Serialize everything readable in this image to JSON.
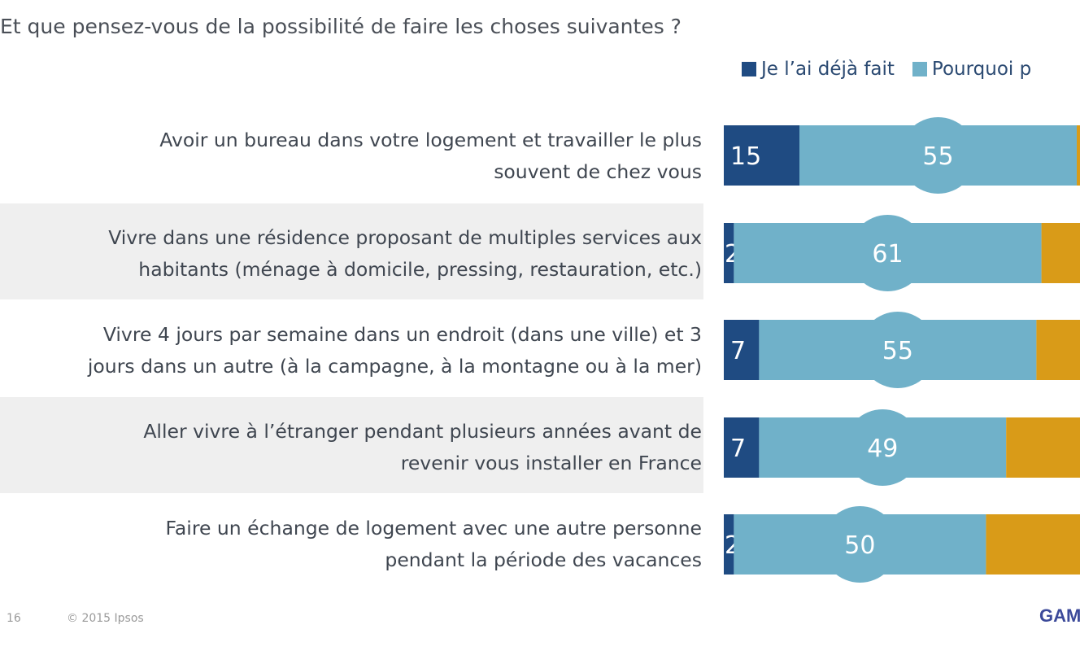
{
  "subtitle": "Et que pensez-vous de la possibilité de faire les choses suivantes ?",
  "chart_data": {
    "type": "bar",
    "orientation": "horizontal",
    "stacked": true,
    "categories": [
      "Avoir un bureau dans votre logement et travailler le plus souvent de chez vous",
      "Vivre dans une résidence proposant de multiples services aux habitants (ménage à domicile, pressing, restauration, etc.)",
      "Vivre 4 jours par semaine dans un endroit (dans une ville) et 3 jours dans un autre (à la campagne, à la montagne ou à la mer)",
      "Aller vivre à l’étranger pendant plusieurs années avant de revenir vous installer en France",
      "Faire un échange de logement avec une autre personne pendant la période des vacances"
    ],
    "category_lines": [
      [
        "Avoir un bureau dans votre logement et travailler le plus",
        "souvent de chez vous"
      ],
      [
        "Vivre dans une résidence proposant de multiples services aux",
        "habitants (ménage à domicile, pressing, restauration, etc.)"
      ],
      [
        "Vivre 4 jours par semaine dans un endroit (dans une ville) et 3",
        "jours dans un autre (à la campagne, à la montagne ou à la mer)"
      ],
      [
        "Aller vivre à l’étranger pendant plusieurs années avant de",
        "revenir vous installer en France"
      ],
      [
        "Faire un échange de logement avec une autre personne",
        "pendant la période des vacances"
      ]
    ],
    "series": [
      {
        "name": "Je l’ai déjà fait",
        "values": [
          15,
          2,
          7,
          7,
          2
        ],
        "color": "#1f4b82"
      },
      {
        "name": "Pourquoi p",
        "values": [
          55,
          61,
          55,
          49,
          50
        ],
        "color": "#70b1c9"
      },
      {
        "name": "",
        "values": [
          null,
          null,
          null,
          null,
          null
        ],
        "color": "#d99b18"
      }
    ],
    "data_labels": true,
    "legend_position": "top-right",
    "grid": false
  },
  "footer": {
    "page": "16",
    "copyright": "© 2015 Ipsos",
    "logo": "GAM"
  }
}
